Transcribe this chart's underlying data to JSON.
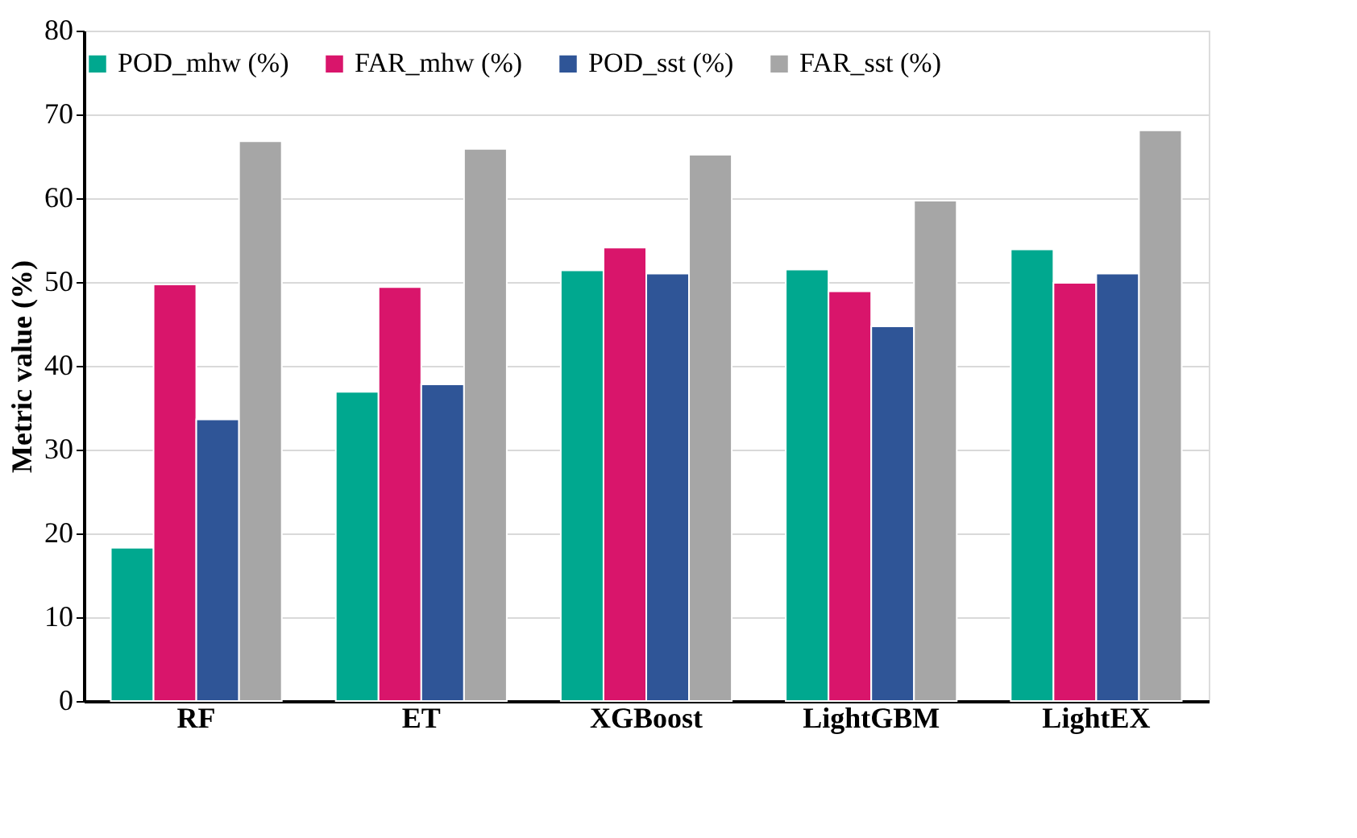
{
  "chart_data": {
    "type": "bar",
    "ylabel": "Metric value (%)",
    "categories": [
      "RF",
      "ET",
      "XGBoost",
      "LightGBM",
      "LightEX"
    ],
    "series": [
      {
        "name": "POD_mhw (%)",
        "color": "#00a88f",
        "values": [
          18.3,
          36.9,
          51.4,
          51.5,
          53.9
        ]
      },
      {
        "name": "FAR_mhw (%)",
        "color": "#d9156b",
        "values": [
          49.7,
          49.4,
          54.1,
          48.9,
          49.9
        ]
      },
      {
        "name": "POD_sst (%)",
        "color": "#2f5597",
        "values": [
          33.6,
          37.8,
          51.0,
          44.7,
          51.0
        ]
      },
      {
        "name": "FAR_sst (%)",
        "color": "#a6a6a6",
        "values": [
          66.8,
          65.9,
          65.2,
          59.7,
          68.1
        ]
      }
    ],
    "ylim": [
      0,
      80
    ],
    "yticks": [
      0,
      10,
      20,
      30,
      40,
      50,
      60,
      70,
      80
    ],
    "grid": "y",
    "legend": "top"
  }
}
